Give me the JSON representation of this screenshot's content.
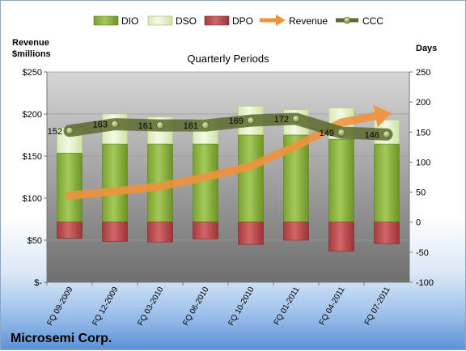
{
  "company": "Microsemi Corp.",
  "chart_data": {
    "type": "bar",
    "title": "Quarterly Periods",
    "left_axis_label_line1": "Revenue",
    "left_axis_label_line2": "$millions",
    "right_axis_label": "Days",
    "categories": [
      "FQ 09-2009",
      "FQ 12-2009",
      "FQ 03-2010",
      "FQ 06-2010",
      "FQ 10-2010",
      "FQ 01-2011",
      "FQ 04-2011",
      "FQ 07-2011"
    ],
    "left_ticks": [
      "$250",
      "$200",
      "$150",
      "$100",
      "$50",
      "$-"
    ],
    "right_ticks": [
      "250",
      "200",
      "150",
      "100",
      "50",
      "0",
      "-50",
      "-100"
    ],
    "left_ylim": [
      0,
      250
    ],
    "right_ylim": [
      -100,
      250
    ],
    "grid": true,
    "legend_position": "top",
    "series": [
      {
        "name": "DIO",
        "axis": "right",
        "kind": "bar",
        "color": "#8db33b",
        "values": [
          115,
          130,
          130,
          130,
          145,
          145,
          138,
          130
        ]
      },
      {
        "name": "DSO",
        "axis": "right",
        "kind": "bar-stacked",
        "color": "#e6f2c8",
        "values": [
          42,
          50,
          45,
          42,
          48,
          42,
          52,
          40
        ]
      },
      {
        "name": "DPO",
        "axis": "right",
        "kind": "bar-negative",
        "color": "#c0474a",
        "values": [
          -27,
          -32,
          -33,
          -28,
          -37,
          -30,
          -48,
          -36
        ]
      },
      {
        "name": "Revenue",
        "axis": "left",
        "kind": "line",
        "color": "#f0923c",
        "values": [
          103,
          108,
          114,
          125,
          138,
          162,
          190,
          200
        ]
      },
      {
        "name": "CCC",
        "axis": "right",
        "kind": "line",
        "color": "#5b6a2e",
        "values": [
          152,
          163,
          161,
          161,
          169,
          172,
          149,
          146
        ],
        "labels": [
          "152",
          "163",
          "161",
          "161",
          "169",
          "172",
          "149",
          "146"
        ]
      }
    ]
  }
}
